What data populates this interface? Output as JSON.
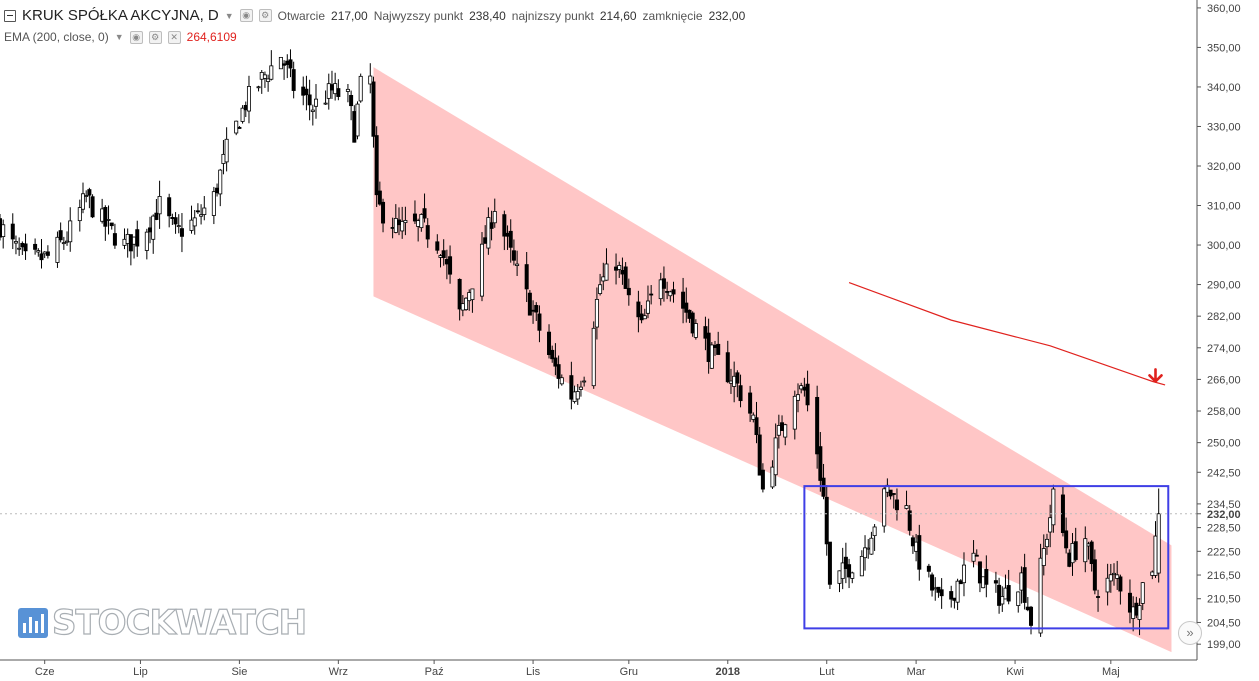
{
  "legend": {
    "title": "KRUK SPÓŁKA AKCYJNA, D",
    "open_label": "Otwarcie",
    "open_value": "217,00",
    "high_label": "Najwyzszy punkt",
    "high_value": "238,40",
    "low_label": "najnizszy punkt",
    "low_value": "214,60",
    "close_label": "zamknięcie",
    "close_value": "232,00",
    "ema_label": "EMA (200, close, 0)",
    "ema_value": "264,6109"
  },
  "watermark": "STOCKWATCH",
  "colors": {
    "channel": "#ffc6c6",
    "range_box": "#3f3fe6",
    "ema": "#e0221e",
    "candle_up": "#ffffff",
    "candle_down": "#000000",
    "axis_text": "#444444",
    "last_price_line": "#bbbbbb",
    "arrow": "#e0221e"
  },
  "chart_data": {
    "type": "candlestick",
    "symbol": "KRUK SPÓŁKA AKCYJNA",
    "interval": "D",
    "x_tick_labels": [
      "Cze",
      "Lip",
      "Sie",
      "Wrz",
      "Paź",
      "Lis",
      "Gru",
      "2018",
      "Lut",
      "Mar",
      "Kwi",
      "Maj"
    ],
    "x_range": [
      "2017-05-18",
      "2018-05-28"
    ],
    "y_tick_labels": [
      "199,00",
      "204,50",
      "210,50",
      "216,50",
      "222,50",
      "228,50",
      "232,00",
      "234,50",
      "242,50",
      "250,00",
      "258,00",
      "266,00",
      "274,00",
      "282,00",
      "290,00",
      "300,00",
      "310,00",
      "320,00",
      "330,00",
      "340,00",
      "350,00",
      "360,00"
    ],
    "y_range": [
      195,
      362
    ],
    "last_close": 232.0,
    "last_close_label": "232,00",
    "price_path": [
      [
        "2017-05-18",
        305
      ],
      [
        "2017-05-22",
        300
      ],
      [
        "2017-05-26",
        296
      ],
      [
        "2017-06-02",
        297
      ],
      [
        "2017-06-08",
        302
      ],
      [
        "2017-06-14",
        312
      ],
      [
        "2017-06-20",
        305
      ],
      [
        "2017-06-26",
        300
      ],
      [
        "2017-07-01",
        302
      ],
      [
        "2017-07-07",
        310
      ],
      [
        "2017-07-12",
        303
      ],
      [
        "2017-07-18",
        306
      ],
      [
        "2017-07-24",
        312
      ],
      [
        "2017-07-28",
        324
      ],
      [
        "2017-08-03",
        336
      ],
      [
        "2017-08-09",
        343
      ],
      [
        "2017-08-14",
        348
      ],
      [
        "2017-08-18",
        340
      ],
      [
        "2017-08-24",
        335
      ],
      [
        "2017-08-30",
        339
      ],
      [
        "2017-09-04",
        337
      ],
      [
        "2017-09-06",
        329
      ],
      [
        "2017-09-08",
        340
      ],
      [
        "2017-09-11",
        342
      ],
      [
        "2017-09-13",
        310
      ],
      [
        "2017-09-20",
        304
      ],
      [
        "2017-09-27",
        305
      ],
      [
        "2017-10-03",
        300
      ],
      [
        "2017-10-09",
        282
      ],
      [
        "2017-10-16",
        298
      ],
      [
        "2017-10-20",
        310
      ],
      [
        "2017-10-26",
        295
      ],
      [
        "2017-11-01",
        283
      ],
      [
        "2017-11-07",
        270
      ],
      [
        "2017-11-13",
        262
      ],
      [
        "2017-11-17",
        268
      ],
      [
        "2017-11-22",
        290
      ],
      [
        "2017-11-27",
        296
      ],
      [
        "2017-12-01",
        286
      ],
      [
        "2017-12-05",
        279
      ],
      [
        "2017-12-11",
        293
      ],
      [
        "2017-12-15",
        288
      ],
      [
        "2017-12-20",
        282
      ],
      [
        "2017-12-27",
        272
      ],
      [
        "2018-01-03",
        266
      ],
      [
        "2018-01-09",
        256
      ],
      [
        "2018-01-12",
        238
      ],
      [
        "2018-01-17",
        252
      ],
      [
        "2018-01-22",
        264
      ],
      [
        "2018-01-25",
        263
      ],
      [
        "2018-01-29",
        248
      ],
      [
        "2018-01-31",
        236
      ],
      [
        "2018-02-02",
        213
      ],
      [
        "2018-02-06",
        217
      ],
      [
        "2018-02-12",
        222
      ],
      [
        "2018-02-16",
        230
      ],
      [
        "2018-02-20",
        238
      ],
      [
        "2018-02-26",
        233
      ],
      [
        "2018-03-01",
        222
      ],
      [
        "2018-03-06",
        213
      ],
      [
        "2018-03-10",
        207
      ],
      [
        "2018-03-14",
        215
      ],
      [
        "2018-03-19",
        221
      ],
      [
        "2018-03-23",
        213
      ],
      [
        "2018-03-28",
        211
      ],
      [
        "2018-04-03",
        216
      ],
      [
        "2018-04-06",
        205
      ],
      [
        "2018-04-11",
        227
      ],
      [
        "2018-04-13",
        236
      ],
      [
        "2018-04-18",
        221
      ],
      [
        "2018-04-23",
        226
      ],
      [
        "2018-04-26",
        213
      ],
      [
        "2018-05-03",
        216
      ],
      [
        "2018-05-08",
        207
      ],
      [
        "2018-05-11",
        214
      ],
      [
        "2018-05-14",
        219
      ],
      [
        "2018-05-16",
        232
      ]
    ],
    "ema": {
      "name": "EMA (200, close, 0)",
      "points": [
        [
          "2018-02-08",
          290.5
        ],
        [
          "2018-03-12",
          281
        ],
        [
          "2018-04-12",
          274.5
        ],
        [
          "2018-05-14",
          265.5
        ],
        [
          "2018-05-18",
          264.6
        ]
      ],
      "last_value": 264.6109
    },
    "downtrend_channel": {
      "upper": [
        [
          "2017-09-12",
          345
        ],
        [
          "2018-05-20",
          224
        ]
      ],
      "lower": [
        [
          "2017-09-12",
          287
        ],
        [
          "2018-05-20",
          197
        ]
      ]
    },
    "range_box": {
      "x": [
        "2018-01-25",
        "2018-05-19"
      ],
      "y": [
        203,
        239
      ]
    },
    "marker": {
      "type": "down-arrow",
      "date": "2018-05-15",
      "value": 266.5
    },
    "grid": false,
    "legend": "top-left"
  }
}
